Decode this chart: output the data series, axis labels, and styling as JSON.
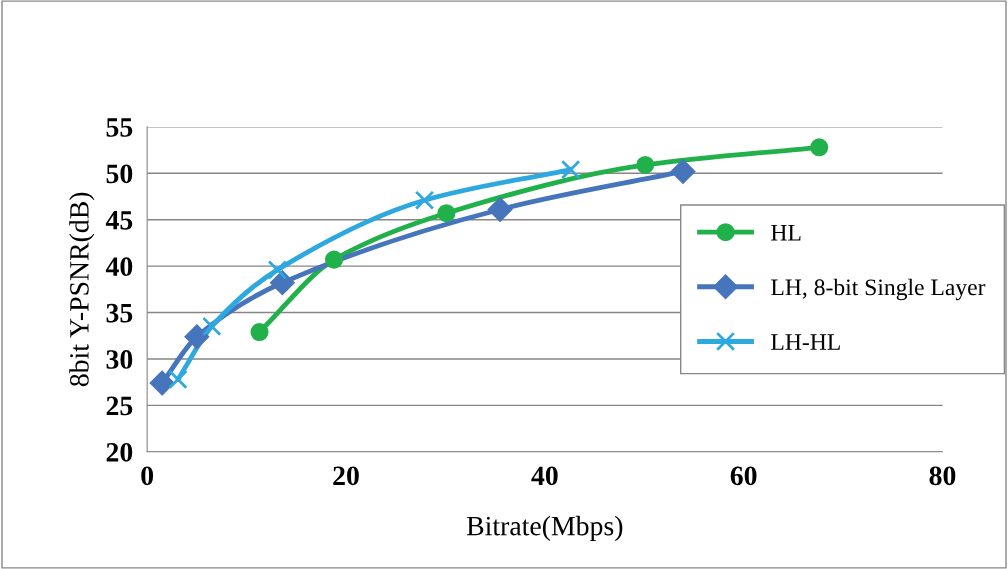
{
  "chart_data": {
    "type": "line",
    "xlabel": "Bitrate(Mbps)",
    "ylabel": "8bit Y-PSNR(dB)",
    "xlim": [
      0,
      80
    ],
    "xticks": [
      0,
      20,
      40,
      60,
      80
    ],
    "ylim": [
      20,
      55
    ],
    "yticks": [
      20,
      25,
      30,
      35,
      40,
      45,
      50,
      55
    ],
    "grid": "y",
    "legend": "right",
    "line_style": "solid",
    "series": [
      {
        "name": "HL",
        "color": "#21b14b",
        "marker": "circle",
        "x": [
          11.3,
          18.8,
          30.1,
          50.1,
          67.6
        ],
        "values": [
          32.9,
          40.7,
          45.7,
          50.9,
          52.8
        ]
      },
      {
        "name": "LH, 8-bit Single Layer",
        "color": "#4675bb",
        "marker": "diamond",
        "x": [
          1.5,
          5.0,
          13.6,
          35.5,
          53.9
        ],
        "values": [
          27.4,
          32.4,
          38.2,
          46.1,
          50.2
        ]
      },
      {
        "name": "LH-HL",
        "color": "#2ea9df",
        "marker": "cross",
        "x": [
          3.1,
          6.5,
          13.1,
          27.9,
          42.6
        ],
        "values": [
          27.8,
          33.5,
          39.6,
          47.1,
          50.4
        ]
      }
    ]
  }
}
